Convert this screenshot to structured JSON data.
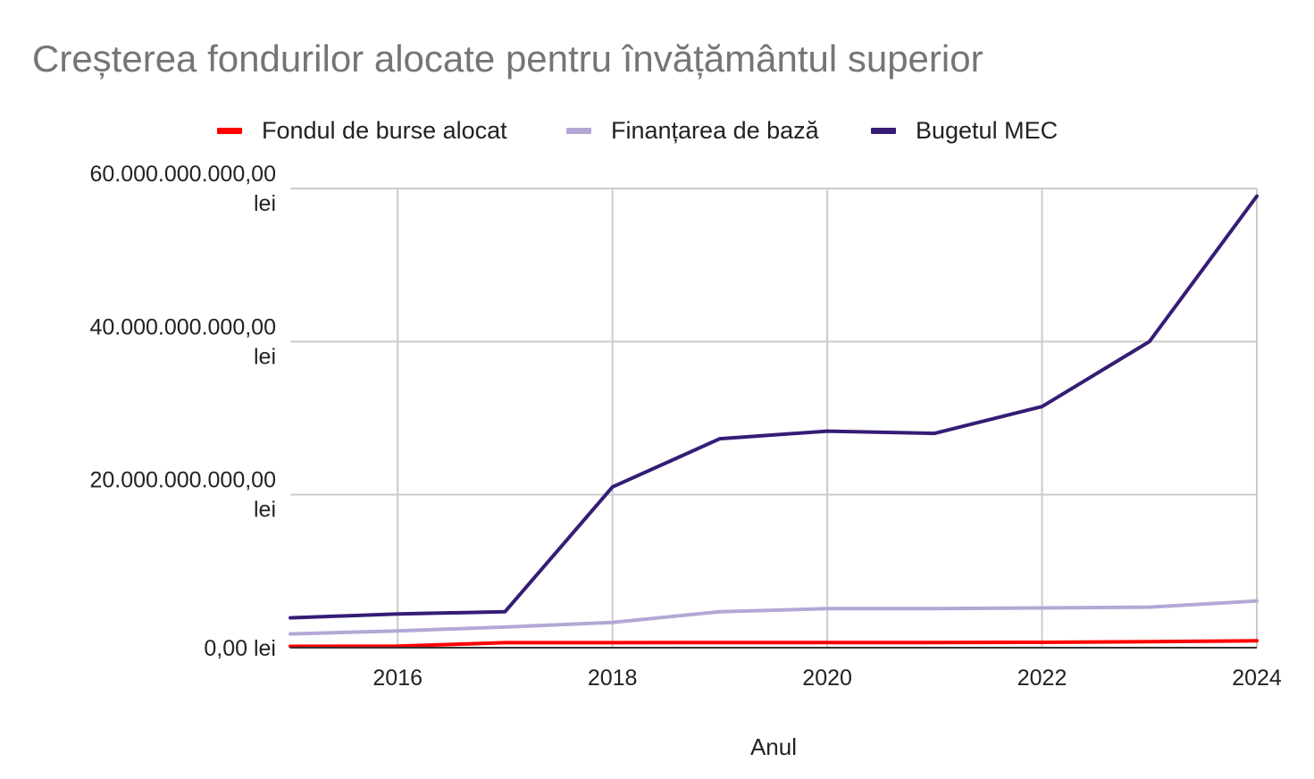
{
  "chart_data": {
    "type": "line",
    "title": "Creșterea fondurilor alocate pentru învățământul superior",
    "xlabel": "Anul",
    "ylabel": "",
    "x": [
      2015,
      2016,
      2017,
      2018,
      2019,
      2020,
      2021,
      2022,
      2023,
      2024
    ],
    "xlim": [
      2015,
      2024
    ],
    "ylim": [
      0,
      60000000000
    ],
    "x_ticks": [
      "2016",
      "2018",
      "2020",
      "2022",
      "2024"
    ],
    "y_ticks": [
      {
        "value": 0,
        "label": "0,00 lei"
      },
      {
        "value": 20000000000,
        "label": "20.000.000.000,00 lei"
      },
      {
        "value": 40000000000,
        "label": "40.000.000.000,00 lei"
      },
      {
        "value": 60000000000,
        "label": "60.000.000.000,00 lei"
      }
    ],
    "grid": true,
    "legend_position": "top",
    "series": [
      {
        "name": "Fondul de burse alocat",
        "color": "#ff0000",
        "values": [
          180000000,
          200000000,
          650000000,
          650000000,
          680000000,
          680000000,
          680000000,
          700000000,
          780000000,
          900000000
        ]
      },
      {
        "name": "Finanțarea de bază",
        "color": "#b4a7d6",
        "values": [
          1800000000,
          2200000000,
          2700000000,
          3300000000,
          4700000000,
          5100000000,
          5100000000,
          5200000000,
          5300000000,
          6100000000
        ]
      },
      {
        "name": "Bugetul MEC",
        "color": "#351c75",
        "values": [
          3900000000,
          4400000000,
          4700000000,
          21000000000,
          27300000000,
          28300000000,
          28000000000,
          31500000000,
          40000000000,
          59000000000
        ]
      }
    ]
  }
}
